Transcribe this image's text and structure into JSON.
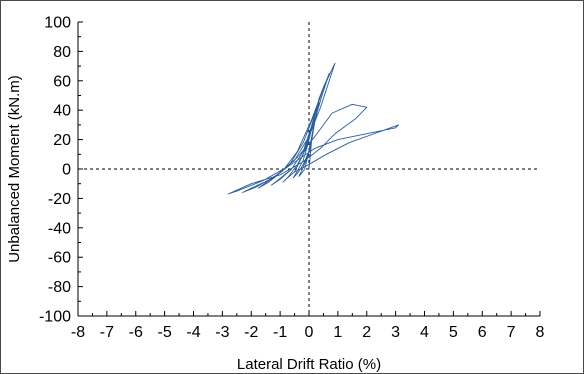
{
  "chart_data": {
    "type": "line",
    "title": "",
    "xlabel": "Lateral Drift Ratio  (%)",
    "ylabel": "Unbalanced Moment (kN.m)",
    "xlim": [
      -8,
      8
    ],
    "ylim": [
      -100,
      100
    ],
    "xticks": [
      "-8",
      "-7",
      "-6",
      "-5",
      "-4",
      "-3",
      "-2",
      "-1",
      "0",
      "1",
      "2",
      "3",
      "4",
      "5",
      "6",
      "7",
      "8"
    ],
    "yticks": [
      "100",
      "80",
      "60",
      "40",
      "20",
      "0",
      "-20",
      "-40",
      "-60",
      "-80",
      "-100"
    ],
    "reference_lines": [
      {
        "axis": "x",
        "value": 0,
        "style": "dashed"
      },
      {
        "axis": "y",
        "value": 0,
        "style": "dashed"
      }
    ],
    "grid": false,
    "series_color": "#2a5d9f",
    "series": [
      {
        "x": [
          0,
          0.05,
          0.1,
          0.05,
          -0.05,
          -0.15,
          -0.3,
          -0.35,
          -0.25,
          -0.1,
          0.05,
          0.15,
          0.2,
          0.1,
          -0.05,
          -0.2,
          -0.45,
          -0.55,
          -0.4,
          -0.2,
          0,
          0.15,
          0.3,
          0.35,
          0.2,
          0,
          -0.2,
          -0.5,
          -0.8,
          -0.9,
          -0.7,
          -0.4,
          -0.1,
          0.15,
          0.35,
          0.5,
          0.55,
          0.35,
          0.1,
          -0.2,
          -0.6,
          -1.1,
          -1.3,
          -1.0,
          -0.6,
          -0.2,
          0.15,
          0.45,
          0.65,
          0.7,
          0.5,
          0.2,
          -0.2,
          -0.7,
          -1.4,
          -1.75,
          -1.4,
          -0.9,
          -0.4,
          0.1,
          0.5,
          0.8,
          0.9,
          0.7,
          0.4,
          0,
          -0.5,
          -1.2,
          -2.0,
          -2.3,
          -1.8,
          -1.1,
          -0.4,
          0.2,
          0.8,
          1.5,
          2.0,
          1.6,
          0.9,
          0.4,
          -0.2,
          -1.0,
          -2.0,
          -2.8,
          -2.5,
          -1.6,
          -0.7,
          0.2,
          1.0,
          2.0,
          3.0,
          3.1,
          2.4,
          1.4,
          0.6,
          -0.1,
          -0.5
        ],
        "y": [
          0,
          10,
          22,
          18,
          8,
          0,
          -4,
          -5,
          -1,
          6,
          14,
          26,
          32,
          28,
          16,
          6,
          -3,
          -6,
          -3,
          3,
          12,
          28,
          40,
          45,
          36,
          22,
          10,
          -2,
          -7,
          -9,
          -5,
          3,
          14,
          32,
          48,
          55,
          58,
          48,
          30,
          12,
          0,
          -8,
          -11,
          -7,
          0,
          12,
          30,
          50,
          62,
          65,
          55,
          38,
          18,
          2,
          -8,
          -13,
          -9,
          -1,
          12,
          34,
          55,
          68,
          72,
          60,
          42,
          22,
          6,
          -6,
          -13,
          -16,
          -12,
          -4,
          8,
          22,
          38,
          44,
          42,
          34,
          24,
          14,
          5,
          -4,
          -10,
          -17,
          -15,
          -8,
          2,
          14,
          20,
          24,
          28,
          30,
          25,
          18,
          10,
          2,
          -2
        ]
      }
    ]
  }
}
